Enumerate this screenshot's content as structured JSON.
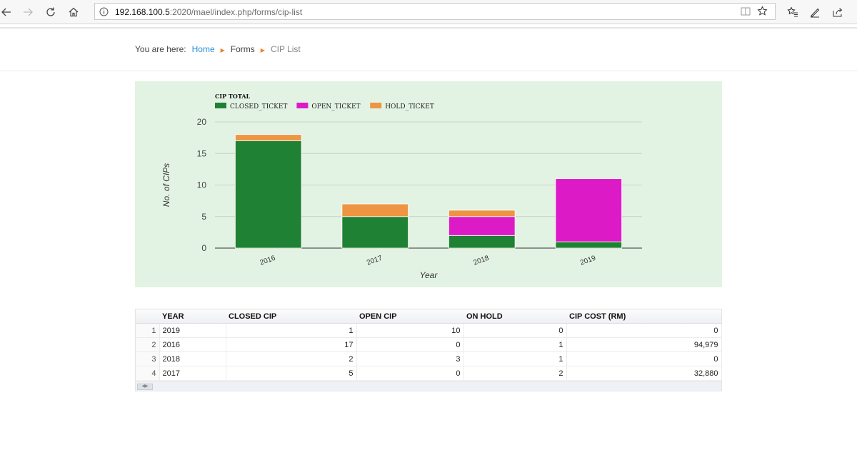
{
  "browser": {
    "url_host": "192.168.100.5",
    "url_path": ":2020/mael/index.php/forms/cip-list"
  },
  "breadcrumb": {
    "prefix": "You are here:",
    "items": [
      "Home",
      "Forms",
      "CIP List"
    ]
  },
  "chart_data": {
    "type": "bar",
    "stacked": true,
    "title": "CIP TOTAL",
    "categories": [
      "2016",
      "2017",
      "2018",
      "2019"
    ],
    "series": [
      {
        "name": "CLOSED_TICKET",
        "color": "#1f8133",
        "values": [
          17,
          5,
          2,
          1
        ]
      },
      {
        "name": "OPEN_TICKET",
        "color": "#dc1bc7",
        "values": [
          0,
          0,
          3,
          10
        ]
      },
      {
        "name": "HOLD_TICKET",
        "color": "#ed9542",
        "values": [
          1,
          2,
          1,
          0
        ]
      }
    ],
    "xlabel": "Year",
    "ylabel": "No. of CIPs",
    "ylim": [
      0,
      20
    ],
    "yticks": [
      0,
      5,
      10,
      15,
      20
    ],
    "legend": "top-left",
    "grid": true
  },
  "table": {
    "columns": [
      "YEAR",
      "CLOSED CIP",
      "OPEN CIP",
      "ON HOLD",
      "CIP COST (RM)"
    ],
    "rows": [
      {
        "n": "1",
        "year": "2019",
        "closed": "1",
        "open": "10",
        "hold": "0",
        "cost": "0"
      },
      {
        "n": "2",
        "year": "2016",
        "closed": "17",
        "open": "0",
        "hold": "1",
        "cost": "94,979"
      },
      {
        "n": "3",
        "year": "2018",
        "closed": "2",
        "open": "3",
        "hold": "1",
        "cost": "0"
      },
      {
        "n": "4",
        "year": "2017",
        "closed": "5",
        "open": "0",
        "hold": "2",
        "cost": "32,880"
      }
    ]
  }
}
